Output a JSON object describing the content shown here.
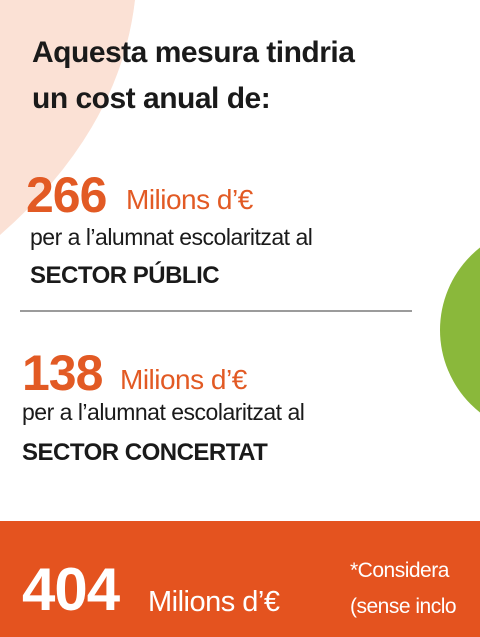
{
  "heading": {
    "lines": [
      "Aquesta mesura tindria",
      "un cost anual de:"
    ]
  },
  "items": [
    {
      "amount": 266,
      "unit": "Milions d’€",
      "description": "per a l’alumnat escolaritzat al",
      "sector": "SECTOR PÚBLIC"
    },
    {
      "amount": 138,
      "unit": "Milions d’€",
      "description": "per a l’alumnat escolaritzat al",
      "sector": "SECTOR CONCERTAT"
    }
  ],
  "total": {
    "amount": 404,
    "unit": "Milions d’€"
  },
  "note": {
    "lines": [
      "*Considera",
      "(sense inclo"
    ]
  }
}
